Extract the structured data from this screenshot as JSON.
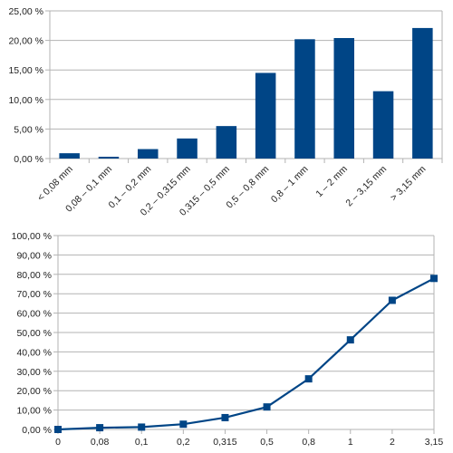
{
  "colors": {
    "series": "#004586",
    "grid": "#b3b3b3",
    "text": "#222222"
  },
  "chart_data": [
    {
      "type": "bar",
      "title": "",
      "xlabel": "",
      "ylabel": "",
      "ylim": [
        0,
        25
      ],
      "yticks": [
        "0,00 %",
        "5,00 %",
        "10,00 %",
        "15,00 %",
        "20,00 %",
        "25,00 %"
      ],
      "categories": [
        "< 0,08 mm",
        "0,08 – 0,1 mm",
        "0,1 – 0,2 mm",
        "0,2 – 0,315 mm",
        "0,315 – 0,5 mm",
        "0,5 – 0,8 mm",
        "0,8 – 1 mm",
        "1 – 2 mm",
        "2 – 3,15 mm",
        "> 3,15 mm"
      ],
      "values": [
        0.9,
        0.3,
        1.6,
        3.4,
        5.5,
        14.5,
        20.2,
        20.4,
        11.4,
        22.1
      ],
      "grid": true,
      "legend": "none"
    },
    {
      "type": "line",
      "title": "",
      "xlabel": "",
      "ylabel": "",
      "ylim": [
        0,
        100
      ],
      "yticks": [
        "0,00 %",
        "10,00 %",
        "20,00 %",
        "30,00 %",
        "40,00 %",
        "50,00 %",
        "60,00 %",
        "70,00 %",
        "80,00 %",
        "90,00 %",
        "100,00 %"
      ],
      "x": [
        "0",
        "0,08",
        "0,1",
        "0,2",
        "0,315",
        "0,5",
        "0,8",
        "1",
        "2",
        "3,15"
      ],
      "values": [
        0.0,
        0.9,
        1.2,
        2.7,
        6.1,
        11.6,
        26.1,
        46.2,
        66.6,
        77.9
      ],
      "marker": "square",
      "grid": true,
      "legend": "none"
    }
  ]
}
